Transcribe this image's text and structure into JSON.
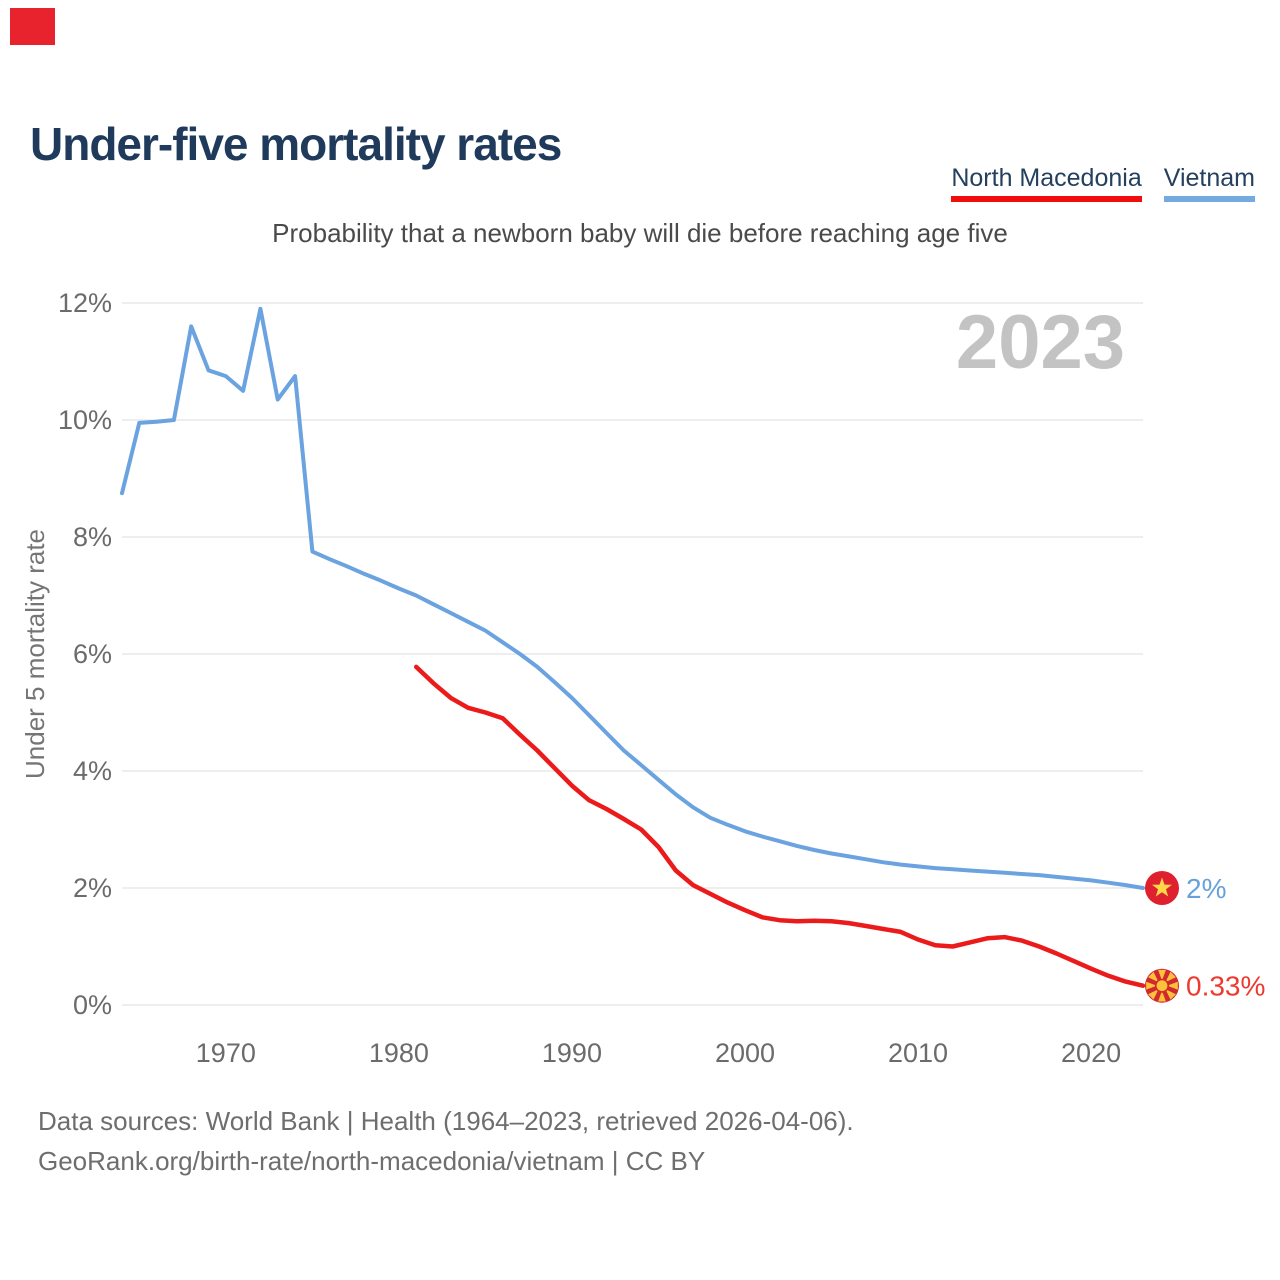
{
  "corner_marker": {
    "color": "#e8232e"
  },
  "header": {
    "title": "Under-five mortality rates"
  },
  "legend": [
    {
      "label": "North Macedonia",
      "underline_color": "#f20d0d"
    },
    {
      "label": "Vietnam",
      "underline_color": "#74aadf"
    }
  ],
  "subtitle": "Probability that a newborn baby will die before reaching age five",
  "chart_data": {
    "type": "line",
    "title": "Under-five mortality rates",
    "subtitle": "Probability that a newborn baby will die before reaching age five",
    "watermark": "2023",
    "ylabel": "Under 5 mortality rate",
    "ylim": [
      0,
      12
    ],
    "x_range": [
      1964,
      2023
    ],
    "grid": true,
    "legend_position": "top-right",
    "yticks": [
      {
        "value": 0,
        "label": "0%"
      },
      {
        "value": 2,
        "label": "2%"
      },
      {
        "value": 4,
        "label": "4%"
      },
      {
        "value": 6,
        "label": "6%"
      },
      {
        "value": 8,
        "label": "8%"
      },
      {
        "value": 10,
        "label": "10%"
      },
      {
        "value": 12,
        "label": "12%"
      }
    ],
    "xticks": [
      {
        "value": 1970,
        "label": "1970"
      },
      {
        "value": 1980,
        "label": "1980"
      },
      {
        "value": 1990,
        "label": "1990"
      },
      {
        "value": 2000,
        "label": "2000"
      },
      {
        "value": 2010,
        "label": "2010"
      },
      {
        "value": 2020,
        "label": "2020"
      }
    ],
    "series": [
      {
        "name": "Vietnam",
        "color": "#6aa3df",
        "line_width": 4,
        "start_year": 1964,
        "end_year": 2023,
        "end_label": "2%",
        "end_label_color": "#67a1dc",
        "flag": {
          "type": "vietnam",
          "bg": "#df202e",
          "emblem": "#ffd54a"
        },
        "values": [
          8.75,
          9.95,
          9.97,
          10.0,
          11.6,
          10.85,
          10.75,
          10.5,
          11.9,
          10.35,
          10.75,
          7.75,
          7.62,
          7.5,
          7.37,
          7.25,
          7.12,
          7.0,
          6.85,
          6.7,
          6.55,
          6.4,
          6.2,
          6.0,
          5.78,
          5.52,
          5.25,
          4.95,
          4.65,
          4.35,
          4.1,
          3.85,
          3.6,
          3.38,
          3.2,
          3.08,
          2.97,
          2.88,
          2.8,
          2.72,
          2.65,
          2.59,
          2.54,
          2.49,
          2.44,
          2.4,
          2.37,
          2.34,
          2.32,
          2.3,
          2.28,
          2.26,
          2.24,
          2.22,
          2.19,
          2.16,
          2.13,
          2.09,
          2.05,
          2.0
        ]
      },
      {
        "name": "North Macedonia",
        "color": "#ec1b1b",
        "line_width": 4.5,
        "start_year": 1981,
        "end_year": 2023,
        "end_label": "0.33%",
        "end_label_color": "#ee392e",
        "flag": {
          "type": "north-macedonia",
          "bg": "#d02a30",
          "emblem": "#fdc23a"
        },
        "values": [
          5.78,
          5.5,
          5.25,
          5.08,
          5.0,
          4.9,
          4.62,
          4.35,
          4.05,
          3.75,
          3.5,
          3.35,
          3.18,
          3.0,
          2.7,
          2.3,
          2.05,
          1.9,
          1.75,
          1.62,
          1.5,
          1.45,
          1.43,
          1.44,
          1.43,
          1.4,
          1.35,
          1.3,
          1.25,
          1.12,
          1.02,
          1.0,
          1.07,
          1.14,
          1.16,
          1.1,
          1.0,
          0.88,
          0.75,
          0.62,
          0.5,
          0.4,
          0.33
        ]
      }
    ]
  },
  "footer": {
    "line1": "Data sources: World Bank | Health (1964–2023, retrieved 2026-04-06).",
    "line2": "GeoRank.org/birth-rate/north-macedonia/vietnam | CC BY"
  }
}
